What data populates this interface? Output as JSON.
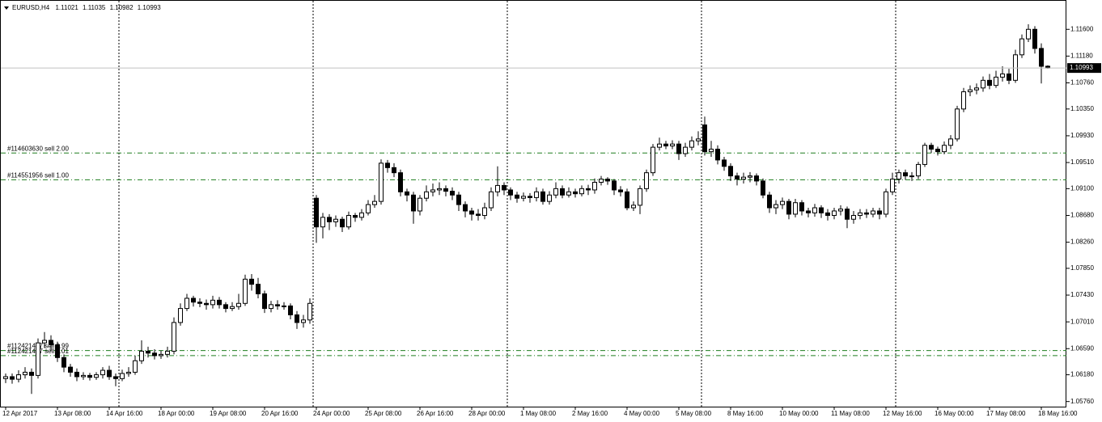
{
  "chart_data": {
    "type": "candlestick",
    "symbol": "EURUSD,H4",
    "up_color": "#ffffff",
    "down_color": "#000000",
    "order_color": "#1e7d1e",
    "price_line_color": "#c0c0c0",
    "ylim": [
      1.0568,
      1.1206
    ],
    "yticks": [
      {
        "value": 1.116,
        "label": "1.11600"
      },
      {
        "value": 1.1118,
        "label": "1.11180"
      },
      {
        "value": 1.1076,
        "label": "1.10760"
      },
      {
        "value": 1.1035,
        "label": "1.10350"
      },
      {
        "value": 1.0993,
        "label": "1.09930"
      },
      {
        "value": 1.0951,
        "label": "1.09510"
      },
      {
        "value": 1.091,
        "label": "1.09100"
      },
      {
        "value": 1.0868,
        "label": "1.08680"
      },
      {
        "value": 1.0826,
        "label": "1.08260"
      },
      {
        "value": 1.0785,
        "label": "1.07850"
      },
      {
        "value": 1.0743,
        "label": "1.07430"
      },
      {
        "value": 1.0701,
        "label": "1.07010"
      },
      {
        "value": 1.0659,
        "label": "1.06590"
      },
      {
        "value": 1.0618,
        "label": "1.06180"
      },
      {
        "value": 1.0576,
        "label": "1.05760"
      }
    ],
    "orders": [
      {
        "label": "#114603630 sell 2.00",
        "price": 1.0966
      },
      {
        "label": "#114551956 sell 1.00",
        "price": 1.0924
      },
      {
        "label": "#112421457 sell 0.99",
        "price": 1.0656
      },
      {
        "label": "#112421457 sell 0.01",
        "price": 1.0648
      }
    ],
    "categories": [
      "12 Apr 2017",
      null,
      null,
      null,
      null,
      null,
      null,
      null,
      "13 Apr 08:00",
      null,
      null,
      null,
      null,
      null,
      null,
      null,
      "14 Apr 16:00",
      null,
      null,
      null,
      null,
      null,
      null,
      null,
      "18 Apr 00:00",
      null,
      null,
      null,
      null,
      null,
      null,
      null,
      "19 Apr 08:00",
      null,
      null,
      null,
      null,
      null,
      null,
      null,
      "20 Apr 16:00",
      null,
      null,
      null,
      null,
      null,
      null,
      null,
      "24 Apr 00:00",
      null,
      null,
      null,
      null,
      null,
      null,
      null,
      "25 Apr 08:00",
      null,
      null,
      null,
      null,
      null,
      null,
      null,
      "26 Apr 16:00",
      null,
      null,
      null,
      null,
      null,
      null,
      null,
      "28 Apr 00:00",
      null,
      null,
      null,
      null,
      null,
      null,
      null,
      "1 May 08:00",
      null,
      null,
      null,
      null,
      null,
      null,
      null,
      "2 May 16:00",
      null,
      null,
      null,
      null,
      null,
      null,
      null,
      "4 May 00:00",
      null,
      null,
      null,
      null,
      null,
      null,
      null,
      "5 May 08:00",
      null,
      null,
      null,
      null,
      null,
      null,
      null,
      "8 May 16:00",
      null,
      null,
      null,
      null,
      null,
      null,
      null,
      "10 May 00:00",
      null,
      null,
      null,
      null,
      null,
      null,
      null,
      "11 May 08:00",
      null,
      null,
      null,
      null,
      null,
      null,
      null,
      "12 May 16:00",
      null,
      null,
      null,
      null,
      null,
      null,
      null,
      "16 May 00:00",
      null,
      null,
      null,
      null,
      null,
      null,
      null,
      "17 May 08:00",
      null,
      null,
      null,
      null,
      null,
      null,
      null,
      "18 May 16:00",
      null
    ],
    "open": [
      1.0612,
      1.0615,
      1.0611,
      1.0618,
      1.0622,
      1.0617,
      1.0668,
      1.0672,
      1.0665,
      1.0645,
      1.063,
      1.0622,
      1.0615,
      1.0617,
      1.0614,
      1.0618,
      1.0625,
      1.0615,
      1.0612,
      1.062,
      1.0622,
      1.064,
      1.0655,
      1.0652,
      1.0648,
      1.065,
      1.0655,
      1.07,
      1.0722,
      1.0738,
      1.0732,
      1.073,
      1.0728,
      1.0735,
      1.0728,
      1.0722,
      1.0725,
      1.073,
      1.0768,
      1.076,
      1.0745,
      1.0722,
      1.0728,
      1.0726,
      1.0726,
      1.0712,
      1.07,
      1.0704,
      1.0895,
      1.085,
      1.0865,
      1.0858,
      1.0862,
      1.085,
      1.0868,
      1.0865,
      1.0872,
      1.0885,
      1.089,
      1.095,
      1.0943,
      1.0935,
      1.0905,
      1.09,
      1.0875,
      1.0895,
      1.0905,
      1.0908,
      1.091,
      1.0906,
      1.09,
      1.0885,
      1.0875,
      1.087,
      1.0868,
      1.088,
      1.0905,
      1.0915,
      1.0908,
      1.09,
      1.0895,
      1.0898,
      1.0896,
      1.0905,
      1.089,
      1.09,
      1.091,
      1.09,
      1.0905,
      1.0902,
      1.091,
      1.0908,
      1.092,
      1.0925,
      1.0922,
      1.0908,
      1.0905,
      1.088,
      1.0884,
      1.091,
      1.0935,
      1.0975,
      1.098,
      1.0977,
      1.098,
      1.0965,
      1.0975,
      1.0985,
      1.101,
      1.0968,
      1.0972,
      1.0955,
      1.0945,
      1.093,
      1.0925,
      1.0928,
      1.093,
      1.0922,
      1.09,
      1.088,
      1.0885,
      1.089,
      1.087,
      1.0888,
      1.0875,
      1.0872,
      1.088,
      1.0872,
      1.0868,
      1.0875,
      1.0878,
      1.0862,
      1.0868,
      1.0872,
      1.087,
      1.0875,
      1.087,
      1.0905,
      1.0925,
      1.0935,
      1.093,
      1.093,
      1.0948,
      1.0978,
      1.0972,
      1.0968,
      1.0978,
      1.0988,
      1.1035,
      1.1062,
      1.1065,
      1.1068,
      1.108,
      1.1072,
      1.1085,
      1.109,
      1.108,
      1.112,
      1.1145,
      1.116,
      1.113,
      1.11021
    ],
    "high": [
      1.062,
      1.062,
      1.0625,
      1.063,
      1.0628,
      1.0675,
      1.0685,
      1.068,
      1.067,
      1.065,
      1.0635,
      1.0628,
      1.0622,
      1.0621,
      1.0622,
      1.063,
      1.0632,
      1.062,
      1.0626,
      1.063,
      1.0648,
      1.0672,
      1.0662,
      1.0658,
      1.0656,
      1.0662,
      1.0708,
      1.073,
      1.0745,
      1.0742,
      1.0738,
      1.0736,
      1.0742,
      1.074,
      1.0732,
      1.0732,
      1.0745,
      1.0775,
      1.0776,
      1.077,
      1.075,
      1.0734,
      1.0735,
      1.0732,
      1.073,
      1.0718,
      1.0712,
      1.0738,
      1.09,
      1.0872,
      1.087,
      1.0868,
      1.0866,
      1.0874,
      1.0872,
      1.0878,
      1.0892,
      1.09,
      1.0956,
      1.0955,
      1.095,
      1.094,
      1.091,
      1.0905,
      1.09,
      1.0915,
      1.0918,
      1.092,
      1.0915,
      1.0912,
      1.0905,
      1.089,
      1.088,
      1.0878,
      1.0888,
      1.0912,
      1.0945,
      1.092,
      1.0912,
      1.0905,
      1.0904,
      1.0903,
      1.0912,
      1.091,
      1.0906,
      1.092,
      1.0915,
      1.0912,
      1.091,
      1.0915,
      1.0916,
      1.0926,
      1.093,
      1.0928,
      1.0925,
      1.0914,
      1.091,
      1.089,
      1.0915,
      1.094,
      1.098,
      1.099,
      1.0985,
      1.0986,
      1.0985,
      1.0982,
      1.0992,
      1.1,
      1.1023,
      1.0985,
      1.0978,
      1.096,
      1.095,
      1.0935,
      1.0935,
      1.0936,
      1.0934,
      1.0926,
      1.0905,
      1.0892,
      1.0896,
      1.0894,
      1.0894,
      1.0892,
      1.088,
      1.0886,
      1.0884,
      1.0878,
      1.088,
      1.0884,
      1.0882,
      1.0875,
      1.0878,
      1.0878,
      1.088,
      1.088,
      1.091,
      1.0935,
      1.094,
      1.094,
      1.0936,
      1.0952,
      1.0982,
      1.0982,
      1.0976,
      1.0984,
      1.0994,
      1.104,
      1.1068,
      1.1072,
      1.1075,
      1.1086,
      1.109,
      1.1095,
      1.1102,
      1.1098,
      1.1128,
      1.1152,
      1.1168,
      1.1165,
      1.1138,
      1.11035
    ],
    "low": [
      1.0605,
      1.0604,
      1.0606,
      1.0612,
      1.0588,
      1.0612,
      1.066,
      1.0655,
      1.0638,
      1.0622,
      1.0615,
      1.0608,
      1.061,
      1.0609,
      1.061,
      1.0612,
      1.061,
      1.06,
      1.0608,
      1.0615,
      1.0618,
      1.0635,
      1.0645,
      1.0642,
      1.0643,
      1.0645,
      1.065,
      1.0695,
      1.0718,
      1.0725,
      1.0724,
      1.072,
      1.0722,
      1.0722,
      1.0716,
      1.0718,
      1.072,
      1.0726,
      1.075,
      1.0738,
      1.0715,
      1.0716,
      1.072,
      1.072,
      1.0705,
      1.069,
      1.0692,
      1.0698,
      1.0825,
      1.0832,
      1.0845,
      1.085,
      1.0842,
      1.0846,
      1.0858,
      1.086,
      1.0868,
      1.088,
      1.0885,
      1.0935,
      1.0928,
      1.0898,
      1.089,
      1.0855,
      1.0868,
      1.089,
      1.0898,
      1.09,
      1.0898,
      1.0892,
      1.0875,
      1.0865,
      1.086,
      1.086,
      1.0862,
      1.0875,
      1.0898,
      1.09,
      1.0892,
      1.0888,
      1.089,
      1.0888,
      1.089,
      1.0885,
      1.0885,
      1.0895,
      1.0895,
      1.0896,
      1.0896,
      1.0898,
      1.09,
      1.0902,
      1.0915,
      1.0916,
      1.09,
      1.0898,
      1.0876,
      1.0875,
      1.087,
      1.0905,
      1.093,
      1.097,
      1.0972,
      1.0972,
      1.0955,
      1.096,
      1.097,
      1.0978,
      1.0962,
      1.096,
      1.0948,
      1.0938,
      1.0922,
      1.0915,
      1.0918,
      1.092,
      1.0915,
      1.0895,
      1.0872,
      1.087,
      1.0878,
      1.0862,
      1.0865,
      1.0868,
      1.0865,
      1.0866,
      1.0864,
      1.086,
      1.0862,
      1.0868,
      1.0848,
      1.0855,
      1.0862,
      1.0864,
      1.0865,
      1.0862,
      1.0865,
      1.09,
      1.0918,
      1.0924,
      1.0922,
      1.0925,
      1.0944,
      1.0966,
      1.0962,
      1.0964,
      1.0972,
      1.0984,
      1.103,
      1.1055,
      1.1058,
      1.1062,
      1.1066,
      1.1068,
      1.1078,
      1.1074,
      1.1076,
      1.1115,
      1.114,
      1.1122,
      1.1075,
      1.10982
    ],
    "close": [
      1.0615,
      1.0611,
      1.0618,
      1.0622,
      1.0617,
      1.0668,
      1.0672,
      1.0665,
      1.0645,
      1.063,
      1.0622,
      1.0615,
      1.0617,
      1.0614,
      1.0618,
      1.0625,
      1.0615,
      1.0612,
      1.062,
      1.0622,
      1.064,
      1.0655,
      1.0652,
      1.0648,
      1.065,
      1.0655,
      1.07,
      1.0722,
      1.0738,
      1.0732,
      1.073,
      1.0728,
      1.0735,
      1.0728,
      1.0722,
      1.0725,
      1.073,
      1.0768,
      1.076,
      1.0745,
      1.0722,
      1.0728,
      1.0726,
      1.0726,
      1.0712,
      1.07,
      1.0704,
      1.073,
      1.085,
      1.0865,
      1.0858,
      1.0862,
      1.085,
      1.0868,
      1.0865,
      1.0872,
      1.0885,
      1.089,
      1.095,
      1.0943,
      1.0935,
      1.0905,
      1.09,
      1.0875,
      1.0895,
      1.0905,
      1.0908,
      1.091,
      1.0906,
      1.09,
      1.0885,
      1.0875,
      1.087,
      1.0868,
      1.088,
      1.0905,
      1.0915,
      1.0908,
      1.09,
      1.0895,
      1.0898,
      1.0896,
      1.0905,
      1.089,
      1.09,
      1.091,
      1.09,
      1.0905,
      1.0902,
      1.091,
      1.0908,
      1.092,
      1.0925,
      1.0922,
      1.0908,
      1.0905,
      1.088,
      1.0884,
      1.091,
      1.0935,
      1.0975,
      1.098,
      1.0977,
      1.098,
      1.0965,
      1.0975,
      1.0985,
      1.0988,
      1.0968,
      1.0972,
      1.0955,
      1.0945,
      1.093,
      1.0925,
      1.0928,
      1.093,
      1.0922,
      1.09,
      1.088,
      1.0885,
      1.089,
      1.087,
      1.0888,
      1.0875,
      1.0872,
      1.088,
      1.0872,
      1.0868,
      1.0875,
      1.0878,
      1.0862,
      1.0868,
      1.0872,
      1.087,
      1.0875,
      1.087,
      1.0905,
      1.0925,
      1.0935,
      1.093,
      1.093,
      1.0948,
      1.0978,
      1.0972,
      1.0968,
      1.0978,
      1.0988,
      1.1035,
      1.1062,
      1.1065,
      1.1068,
      1.108,
      1.1072,
      1.1085,
      1.109,
      1.108,
      1.112,
      1.1145,
      1.116,
      1.113,
      1.1102,
      1.10993
    ]
  }
}
